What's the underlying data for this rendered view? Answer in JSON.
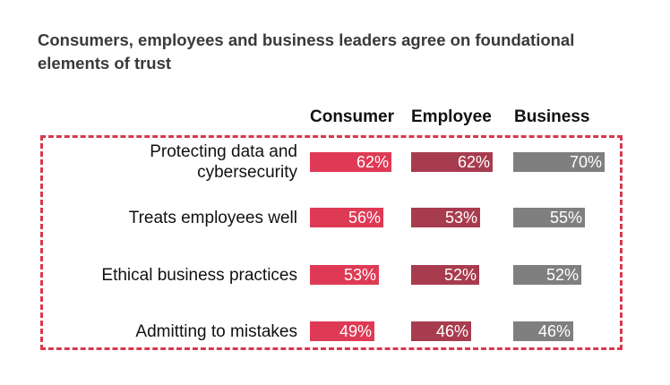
{
  "chart_data": {
    "type": "bar",
    "title": "Consumers, employees and business leaders agree on foundational elements of trust",
    "categories": [
      "Protecting data and cybersecurity",
      "Treats employees well",
      "Ethical business practices",
      "Admitting to mistakes"
    ],
    "category_lines": [
      [
        "Protecting data and",
        "cybersecurity"
      ],
      [
        "Treats employees well"
      ],
      [
        "Ethical business practices"
      ],
      [
        "Admitting to mistakes"
      ]
    ],
    "series": [
      {
        "name": "Consumer",
        "values": [
          62,
          56,
          53,
          49
        ],
        "labels": [
          "62%",
          "56%",
          "53%",
          "49%"
        ],
        "color": "#de3a55"
      },
      {
        "name": "Employee",
        "values": [
          62,
          53,
          52,
          46
        ],
        "labels": [
          "62%",
          "53%",
          "52%",
          "46%"
        ],
        "color": "#a83c4f"
      },
      {
        "name": "Business",
        "values": [
          70,
          55,
          52,
          46
        ],
        "labels": [
          "70%",
          "55%",
          "52%",
          "46%"
        ],
        "color": "#7f7f7f"
      }
    ],
    "unit": "%",
    "legend": "column headers above bars",
    "grid": false,
    "border_color": "#d9384f"
  }
}
